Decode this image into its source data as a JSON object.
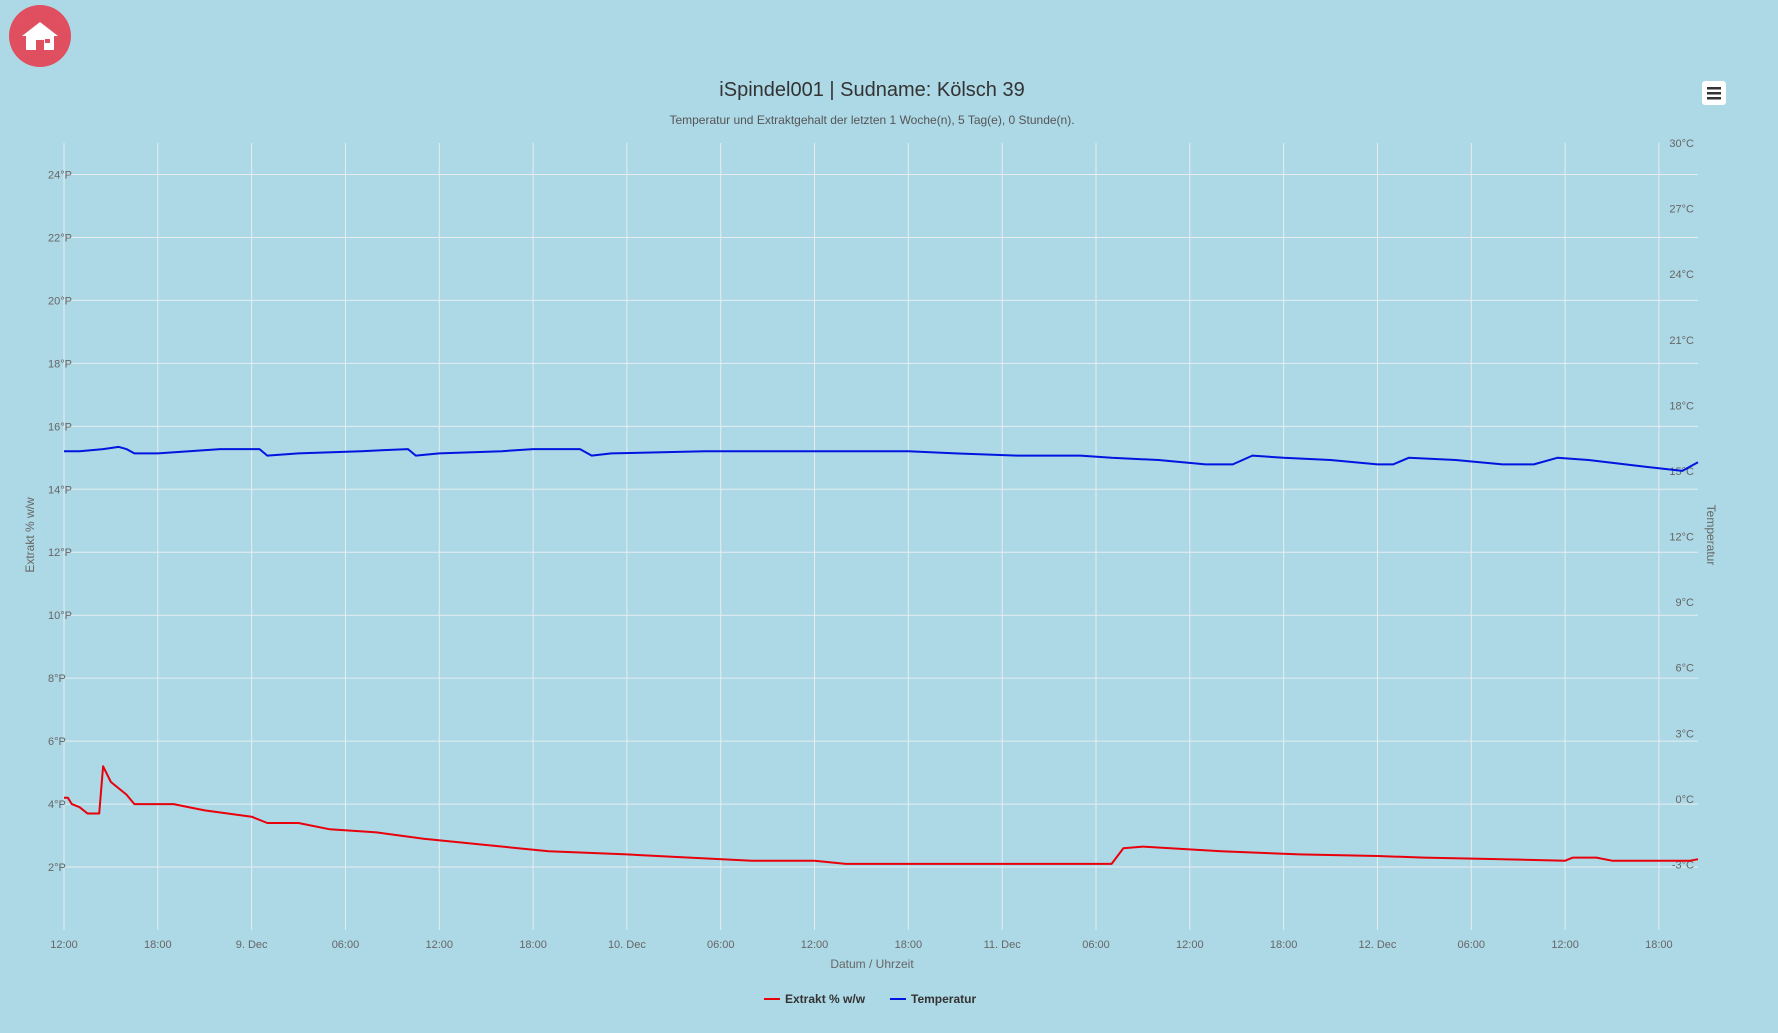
{
  "ui": {
    "home_icon": "home-icon",
    "menu_icon": "hamburger-menu-icon",
    "colors": {
      "background": "#add8e6",
      "home_button": "#e04f5f",
      "grid": "#e6eef2"
    }
  },
  "chart_data": {
    "type": "line",
    "title": "iSpindel001 | Sudname: Kölsch 39",
    "subtitle": "Temperatur und Extraktgehalt der letzten 1 Woche(n), 5 Tag(e), 0 Stunde(n).",
    "xlabel": "Datum / Uhrzeit",
    "x_range": [
      "2023-12-08 12:00",
      "2023-12-12 20:30"
    ],
    "x_ticks": [
      {
        "t": "2023-12-08 12:00",
        "label": "12:00"
      },
      {
        "t": "2023-12-08 18:00",
        "label": "18:00"
      },
      {
        "t": "2023-12-09 00:00",
        "label": "9. Dec"
      },
      {
        "t": "2023-12-09 06:00",
        "label": "06:00"
      },
      {
        "t": "2023-12-09 12:00",
        "label": "12:00"
      },
      {
        "t": "2023-12-09 18:00",
        "label": "18:00"
      },
      {
        "t": "2023-12-10 00:00",
        "label": "10. Dec"
      },
      {
        "t": "2023-12-10 06:00",
        "label": "06:00"
      },
      {
        "t": "2023-12-10 12:00",
        "label": "12:00"
      },
      {
        "t": "2023-12-10 18:00",
        "label": "18:00"
      },
      {
        "t": "2023-12-11 00:00",
        "label": "11. Dec"
      },
      {
        "t": "2023-12-11 06:00",
        "label": "06:00"
      },
      {
        "t": "2023-12-11 12:00",
        "label": "12:00"
      },
      {
        "t": "2023-12-11 18:00",
        "label": "18:00"
      },
      {
        "t": "2023-12-12 00:00",
        "label": "12. Dec"
      },
      {
        "t": "2023-12-12 06:00",
        "label": "06:00"
      },
      {
        "t": "2023-12-12 12:00",
        "label": "12:00"
      },
      {
        "t": "2023-12-12 18:00",
        "label": "18:00"
      }
    ],
    "y_left": {
      "label": "Extrakt % w/w",
      "ylim": [
        0,
        25
      ],
      "ticks": [
        {
          "v": 2,
          "label": "2°P"
        },
        {
          "v": 4,
          "label": "4°P"
        },
        {
          "v": 6,
          "label": "6°P"
        },
        {
          "v": 8,
          "label": "8°P"
        },
        {
          "v": 10,
          "label": "10°P"
        },
        {
          "v": 12,
          "label": "12°P"
        },
        {
          "v": 14,
          "label": "14°P"
        },
        {
          "v": 16,
          "label": "16°P"
        },
        {
          "v": 18,
          "label": "18°P"
        },
        {
          "v": 20,
          "label": "20°P"
        },
        {
          "v": 22,
          "label": "22°P"
        },
        {
          "v": 24,
          "label": "24°P"
        }
      ]
    },
    "y_right": {
      "label": "Temperatur",
      "ylim": [
        -6,
        30
      ],
      "ticks": [
        {
          "v": -3,
          "label": "-3°C"
        },
        {
          "v": 0,
          "label": "0°C"
        },
        {
          "v": 3,
          "label": "3°C"
        },
        {
          "v": 6,
          "label": "6°C"
        },
        {
          "v": 9,
          "label": "9°C"
        },
        {
          "v": 12,
          "label": "12°C"
        },
        {
          "v": 15,
          "label": "15°C"
        },
        {
          "v": 18,
          "label": "18°C"
        },
        {
          "v": 21,
          "label": "21°C"
        },
        {
          "v": 24,
          "label": "24°C"
        },
        {
          "v": 27,
          "label": "27°C"
        },
        {
          "v": 30,
          "label": "30°C"
        }
      ]
    },
    "grid": true,
    "legend_position": "bottom-center",
    "series": [
      {
        "name": "Extrakt % w/w",
        "axis": "left",
        "color": "#e8000b",
        "points": [
          [
            "2023-12-08 12:00",
            4.2
          ],
          [
            "2023-12-08 12:15",
            4.2
          ],
          [
            "2023-12-08 12:30",
            4.0
          ],
          [
            "2023-12-08 13:00",
            3.9
          ],
          [
            "2023-12-08 13:30",
            3.7
          ],
          [
            "2023-12-08 14:15",
            3.7
          ],
          [
            "2023-12-08 14:30",
            5.2
          ],
          [
            "2023-12-08 15:00",
            4.7
          ],
          [
            "2023-12-08 16:00",
            4.3
          ],
          [
            "2023-12-08 16:30",
            4.0
          ],
          [
            "2023-12-08 18:00",
            4.0
          ],
          [
            "2023-12-08 19:00",
            4.0
          ],
          [
            "2023-12-08 21:00",
            3.8
          ],
          [
            "2023-12-09 00:00",
            3.6
          ],
          [
            "2023-12-09 01:00",
            3.4
          ],
          [
            "2023-12-09 03:00",
            3.4
          ],
          [
            "2023-12-09 05:00",
            3.2
          ],
          [
            "2023-12-09 08:00",
            3.1
          ],
          [
            "2023-12-09 11:00",
            2.9
          ],
          [
            "2023-12-09 15:00",
            2.7
          ],
          [
            "2023-12-09 19:00",
            2.5
          ],
          [
            "2023-12-10 00:00",
            2.4
          ],
          [
            "2023-12-10 04:00",
            2.3
          ],
          [
            "2023-12-10 08:00",
            2.2
          ],
          [
            "2023-12-10 12:00",
            2.2
          ],
          [
            "2023-12-10 14:00",
            2.1
          ],
          [
            "2023-12-10 18:00",
            2.1
          ],
          [
            "2023-12-11 00:00",
            2.1
          ],
          [
            "2023-12-11 04:00",
            2.1
          ],
          [
            "2023-12-11 07:00",
            2.1
          ],
          [
            "2023-12-11 07:45",
            2.6
          ],
          [
            "2023-12-11 09:00",
            2.65
          ],
          [
            "2023-12-11 14:00",
            2.5
          ],
          [
            "2023-12-11 19:00",
            2.4
          ],
          [
            "2023-12-12 00:00",
            2.35
          ],
          [
            "2023-12-12 03:00",
            2.3
          ],
          [
            "2023-12-12 08:00",
            2.25
          ],
          [
            "2023-12-12 12:00",
            2.2
          ],
          [
            "2023-12-12 12:30",
            2.3
          ],
          [
            "2023-12-12 14:00",
            2.3
          ],
          [
            "2023-12-12 15:00",
            2.2
          ],
          [
            "2023-12-12 20:00",
            2.2
          ],
          [
            "2023-12-12 20:30",
            2.25
          ]
        ]
      },
      {
        "name": "Temperatur",
        "axis": "right",
        "color": "#0015e0",
        "points": [
          [
            "2023-12-08 12:00",
            15.9
          ],
          [
            "2023-12-08 13:00",
            15.9
          ],
          [
            "2023-12-08 14:30",
            16.0
          ],
          [
            "2023-12-08 15:30",
            16.1
          ],
          [
            "2023-12-08 16:00",
            16.0
          ],
          [
            "2023-12-08 16:30",
            15.8
          ],
          [
            "2023-12-08 18:00",
            15.8
          ],
          [
            "2023-12-08 20:00",
            15.9
          ],
          [
            "2023-12-08 22:00",
            16.0
          ],
          [
            "2023-12-09 00:30",
            16.0
          ],
          [
            "2023-12-09 01:00",
            15.7
          ],
          [
            "2023-12-09 03:00",
            15.8
          ],
          [
            "2023-12-09 07:00",
            15.9
          ],
          [
            "2023-12-09 10:00",
            16.0
          ],
          [
            "2023-12-09 10:30",
            15.7
          ],
          [
            "2023-12-09 12:00",
            15.8
          ],
          [
            "2023-12-09 16:00",
            15.9
          ],
          [
            "2023-12-09 18:00",
            16.0
          ],
          [
            "2023-12-09 21:00",
            16.0
          ],
          [
            "2023-12-09 21:45",
            15.7
          ],
          [
            "2023-12-09 23:00",
            15.8
          ],
          [
            "2023-12-10 05:00",
            15.9
          ],
          [
            "2023-12-10 13:00",
            15.9
          ],
          [
            "2023-12-10 18:00",
            15.9
          ],
          [
            "2023-12-10 21:00",
            15.8
          ],
          [
            "2023-12-11 01:00",
            15.7
          ],
          [
            "2023-12-11 05:00",
            15.7
          ],
          [
            "2023-12-11 07:00",
            15.6
          ],
          [
            "2023-12-11 10:00",
            15.5
          ],
          [
            "2023-12-11 13:00",
            15.3
          ],
          [
            "2023-12-11 14:45",
            15.3
          ],
          [
            "2023-12-11 16:00",
            15.7
          ],
          [
            "2023-12-11 18:00",
            15.6
          ],
          [
            "2023-12-11 21:00",
            15.5
          ],
          [
            "2023-12-12 00:00",
            15.3
          ],
          [
            "2023-12-12 01:00",
            15.3
          ],
          [
            "2023-12-12 02:00",
            15.6
          ],
          [
            "2023-12-12 05:00",
            15.5
          ],
          [
            "2023-12-12 08:00",
            15.3
          ],
          [
            "2023-12-12 10:00",
            15.3
          ],
          [
            "2023-12-12 11:30",
            15.6
          ],
          [
            "2023-12-12 13:30",
            15.5
          ],
          [
            "2023-12-12 17:00",
            15.2
          ],
          [
            "2023-12-12 19:30",
            15.0
          ],
          [
            "2023-12-12 20:00",
            15.2
          ],
          [
            "2023-12-12 20:30",
            15.4
          ]
        ]
      }
    ]
  }
}
